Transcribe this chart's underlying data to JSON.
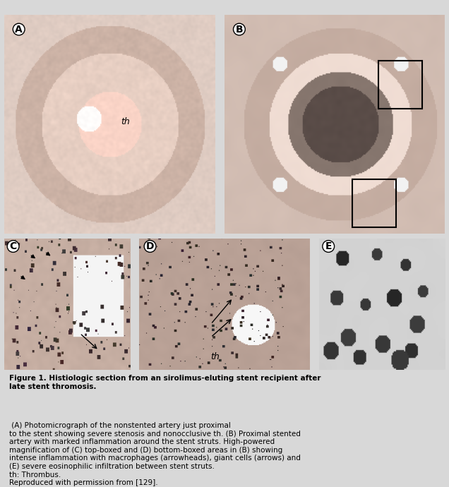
{
  "bg_color": "#e8e8e8",
  "panel_bg": "#c8c8c8",
  "figure_title_bold": "Figure 1. Histiologic section from an sirolimus-eluting stent recipient after\nlate stent thromosis.",
  "figure_caption": " (A) Photomicrograph of the nonstented artery just proximal\nto the stent showing severe stenosis and nonocclusive th. (B) Proximal stented\nartery with marked inflammation around the stent struts. High-powered\nmagnification of (C) top-boxed and (D) bottom-boxed areas in (B) showing\nintense inflammation with macrophages (arrowheads), giant cells (arrows) and\n(E) severe eosinophilic infiltration between stent struts.\nth: Thrombus.\nReproduced with permission from [129].",
  "label_A": "A",
  "label_B": "B",
  "label_C": "C",
  "label_D": "D",
  "label_E": "E",
  "th_label": "th"
}
